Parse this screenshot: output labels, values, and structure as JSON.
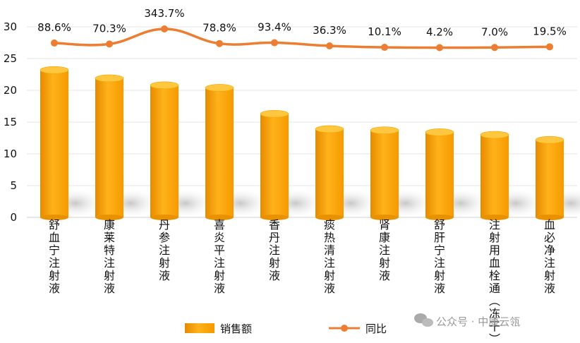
{
  "chart_data": {
    "type": "bar",
    "categories": [
      "舒血宁注射液",
      "康莱特注射液",
      "丹参注射液",
      "喜炎平注射液",
      "香丹注射液",
      "痰热清注射液",
      "肾康注射液",
      "舒肝宁注射液",
      "注射用血栓通（冻干）",
      "血必净注射液"
    ],
    "series": [
      {
        "name": "销售额",
        "type": "bar",
        "axis": "left",
        "values": [
          23.2,
          21.9,
          20.8,
          20.4,
          16.3,
          13.9,
          13.7,
          13.4,
          13.0,
          12.2
        ]
      },
      {
        "name": "同比",
        "type": "line",
        "axis": "hidden",
        "values": [
          88.6,
          70.3,
          343.7,
          78.8,
          93.4,
          36.3,
          10.1,
          4.2,
          7.0,
          19.5
        ],
        "labels": [
          "88.6%",
          "70.3%",
          "343.7%",
          "78.8%",
          "93.4%",
          "36.3%",
          "10.1%",
          "4.2%",
          "7.0%",
          "19.5%"
        ]
      }
    ],
    "yticks": [
      "0",
      "5",
      "10",
      "15",
      "20",
      "25",
      "30"
    ],
    "ylim": [
      0,
      30
    ],
    "grid": true,
    "legend_position": "bottom",
    "colors": {
      "bar": "#FFA500",
      "bar_light": "#FFC640",
      "bar_dark": "#E68A00",
      "line": "#ED7D31"
    }
  },
  "watermark": {
    "text": "公众号 · 中康云瓴",
    "icon": "wechat-icon"
  }
}
